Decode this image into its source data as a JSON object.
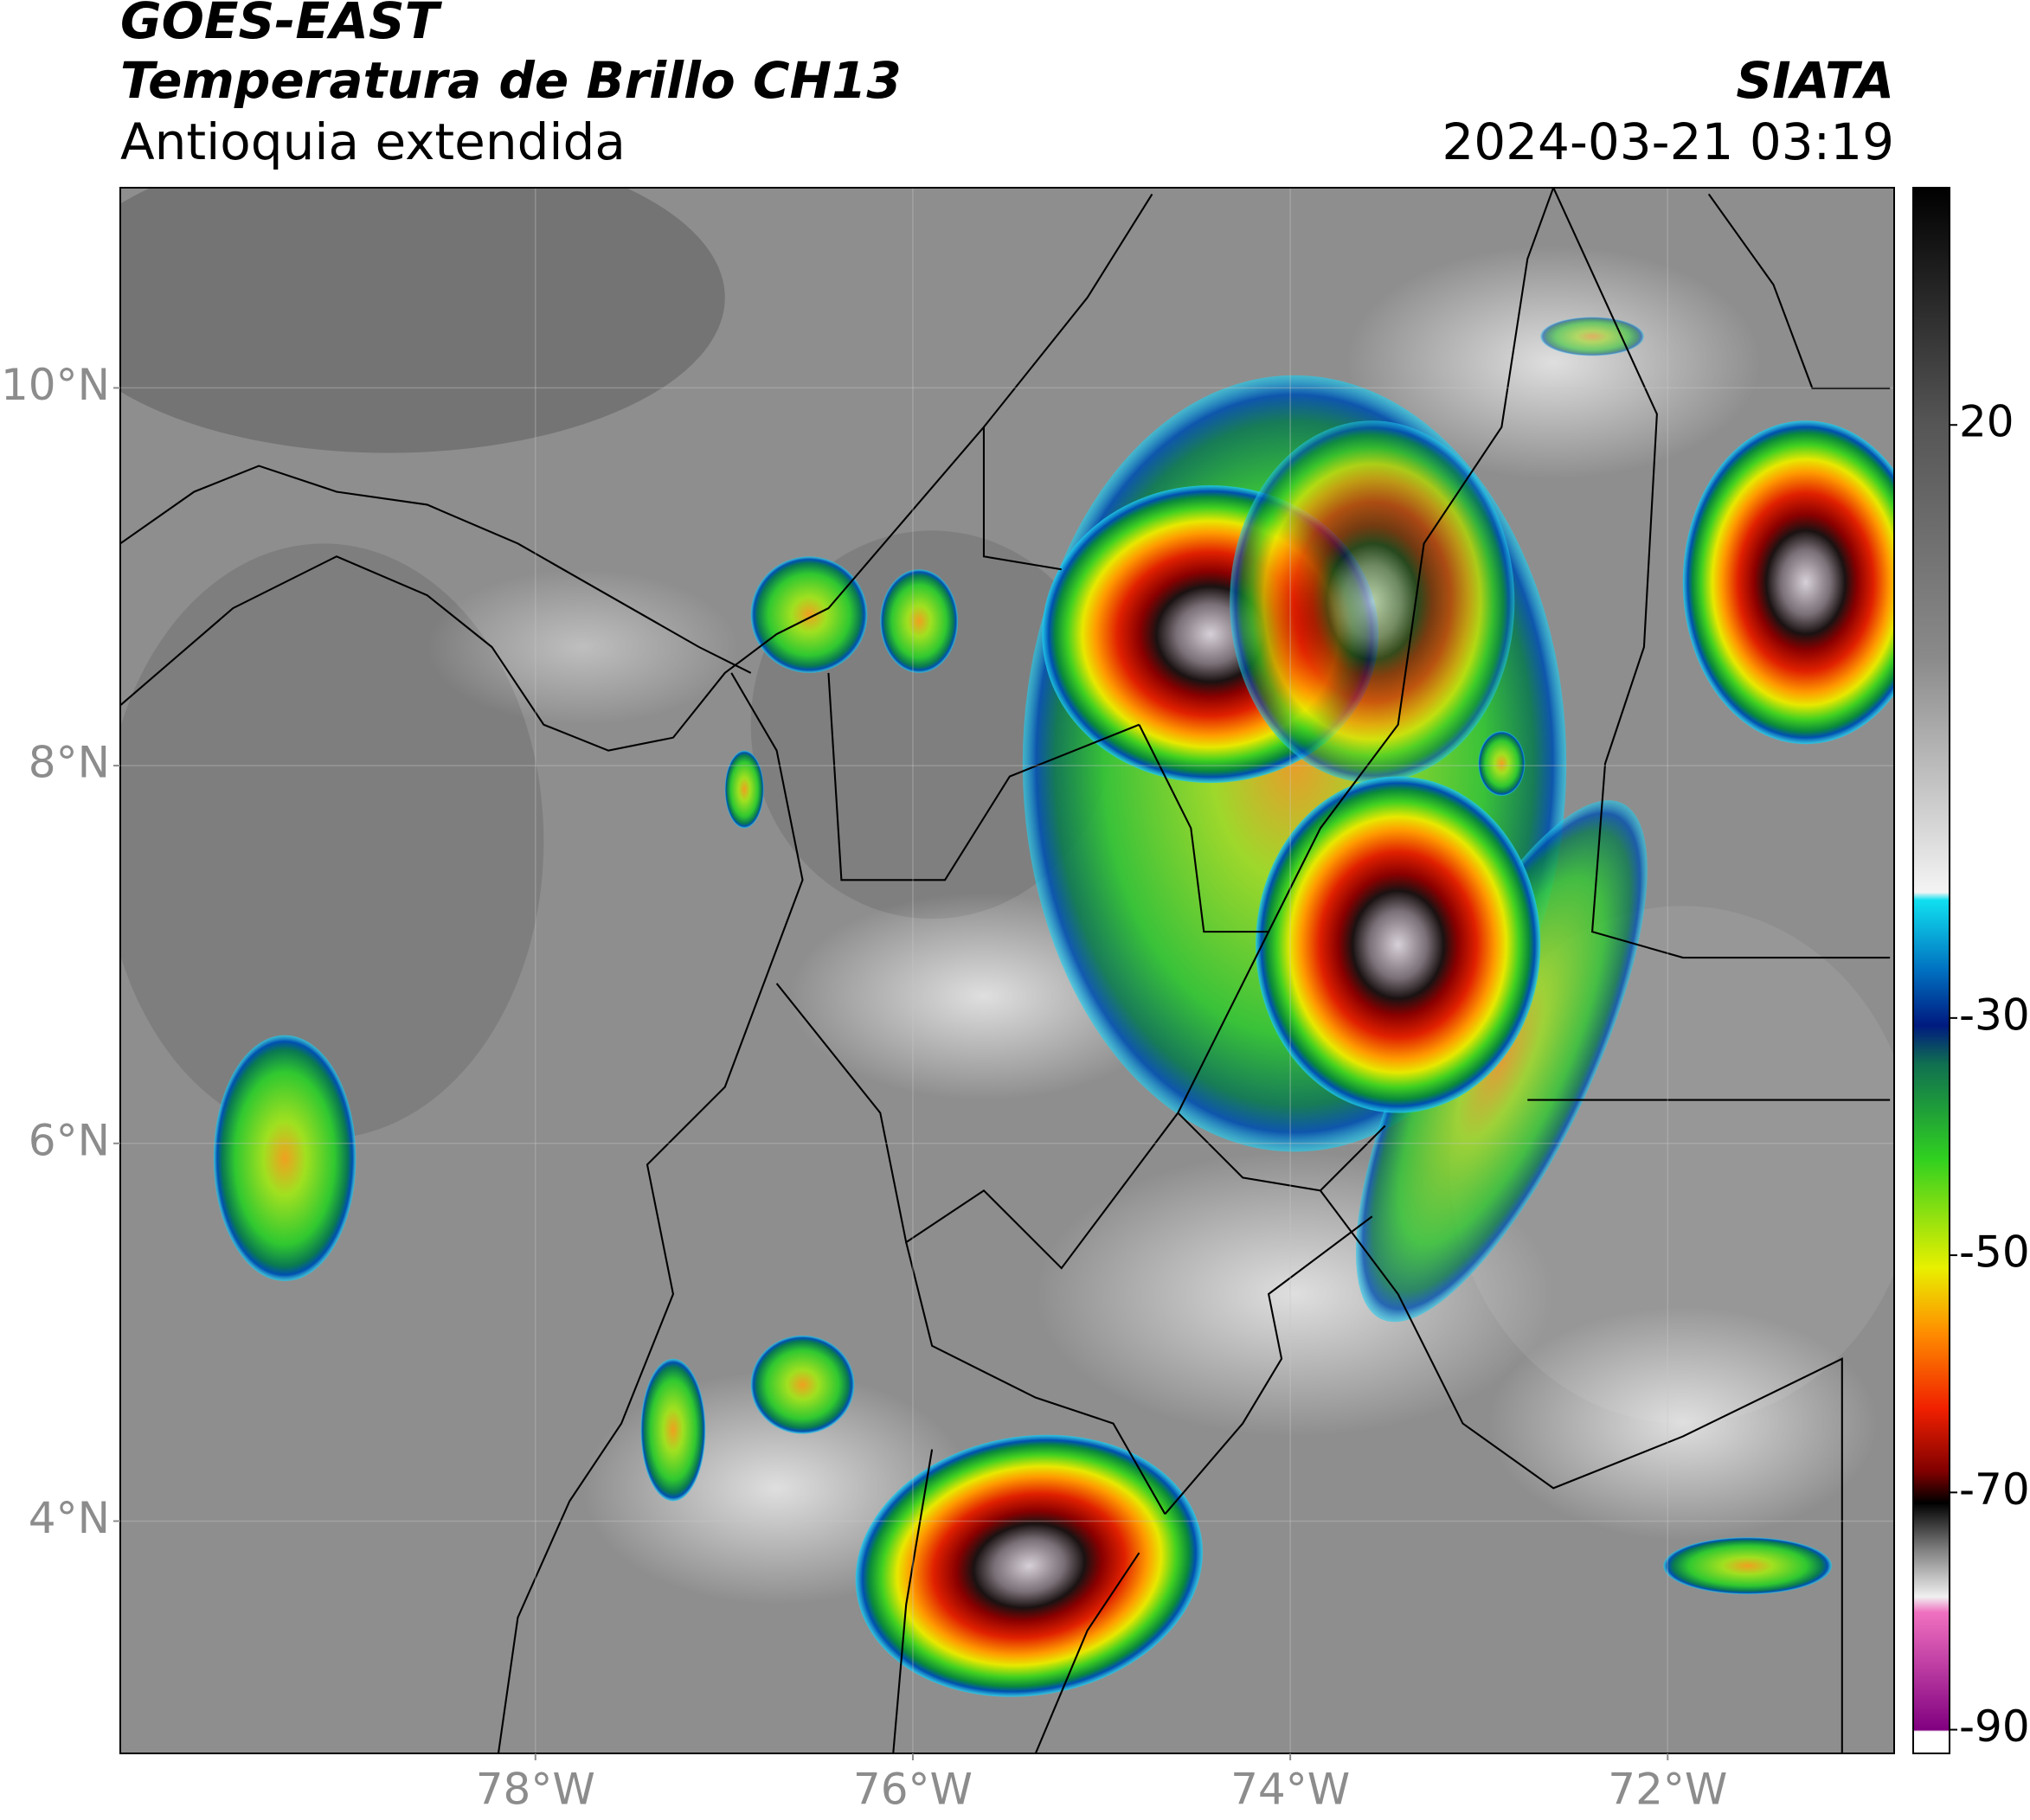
{
  "header": {
    "title": "GOES-EAST",
    "subtitle": "Temperatura de Brillo CH13",
    "region": "Antioquia extendida",
    "source": "SIATA",
    "datetime": "2024-03-21 03:19"
  },
  "chart_data": {
    "type": "map",
    "xlim": [
      -80.2,
      -70.8
    ],
    "ylim": [
      2.77,
      11.06
    ],
    "xticks": [
      {
        "value": -78,
        "label": "78°W"
      },
      {
        "value": -76,
        "label": "76°W"
      },
      {
        "value": -74,
        "label": "74°W"
      },
      {
        "value": -72,
        "label": "72°W"
      }
    ],
    "yticks": [
      {
        "value": 4,
        "label": "4°N"
      },
      {
        "value": 6,
        "label": "6°N"
      },
      {
        "value": 8,
        "label": "8°N"
      },
      {
        "value": 10,
        "label": "10°N"
      }
    ],
    "grid": true,
    "colorbar": {
      "clim": [
        -92,
        40
      ],
      "ticks": [
        20,
        -30,
        -50,
        -70,
        -90
      ]
    }
  }
}
